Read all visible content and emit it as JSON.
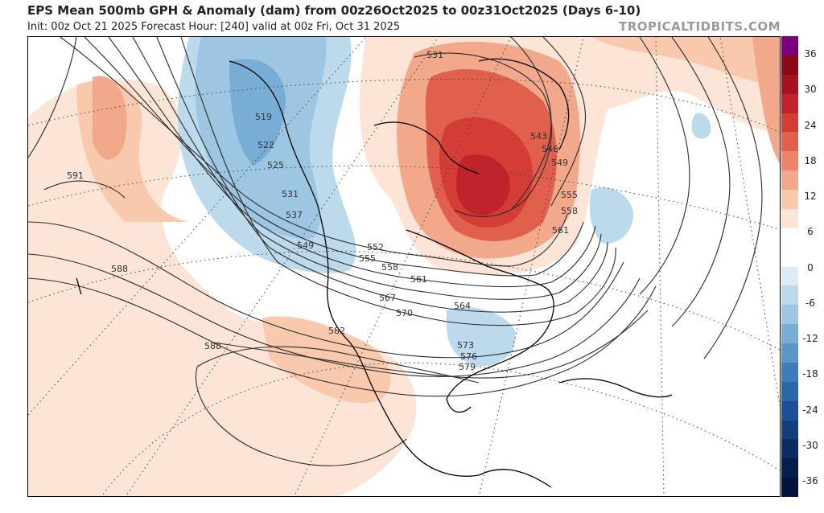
{
  "header": {
    "title": "EPS Mean 500mb GPH & Anomaly (dam) from 00z26Oct2025 to 00z31Oct2025 (Days 6-10)",
    "subtitle": "Init: 00z Oct 21 2025   Forecast Hour: [240]   valid at 00z Fri, Oct 31 2025",
    "brand": "TROPICALTIDBITS.COM"
  },
  "colorbar": {
    "ticks": [
      "36",
      "30",
      "24",
      "18",
      "12",
      "6",
      "0",
      "-6",
      "-12",
      "-18",
      "-24",
      "-30",
      "-36"
    ],
    "colors": [
      "#7a007a",
      "#8b0a1a",
      "#a5131f",
      "#c0242a",
      "#d43d35",
      "#e0604d",
      "#ea8567",
      "#f2a88a",
      "#f8c9ad",
      "#fce4d6",
      "#ffffff",
      "#ffffff",
      "#dcebf6",
      "#bdd9ec",
      "#9cc6e2",
      "#78aed6",
      "#5a96c8",
      "#3d7db9",
      "#2a66a8",
      "#1c4f93",
      "#143d7b",
      "#0d2c63",
      "#071e4d",
      "#03123a"
    ]
  },
  "map": {
    "contour_labels": [
      "519",
      "522",
      "525",
      "531",
      "537",
      "549",
      "552",
      "555",
      "558",
      "561",
      "564",
      "567",
      "570",
      "573",
      "576",
      "579",
      "582",
      "588",
      "588",
      "591",
      "543",
      "546",
      "549",
      "555",
      "558",
      "561",
      "531"
    ],
    "anomaly_colors": {
      "strong_positive": "#a5131f",
      "positive": "#e0604d",
      "weak_positive": "#f8c9ad",
      "negative": "#9cc6e2",
      "strong_negative": "#5a96c8"
    }
  }
}
